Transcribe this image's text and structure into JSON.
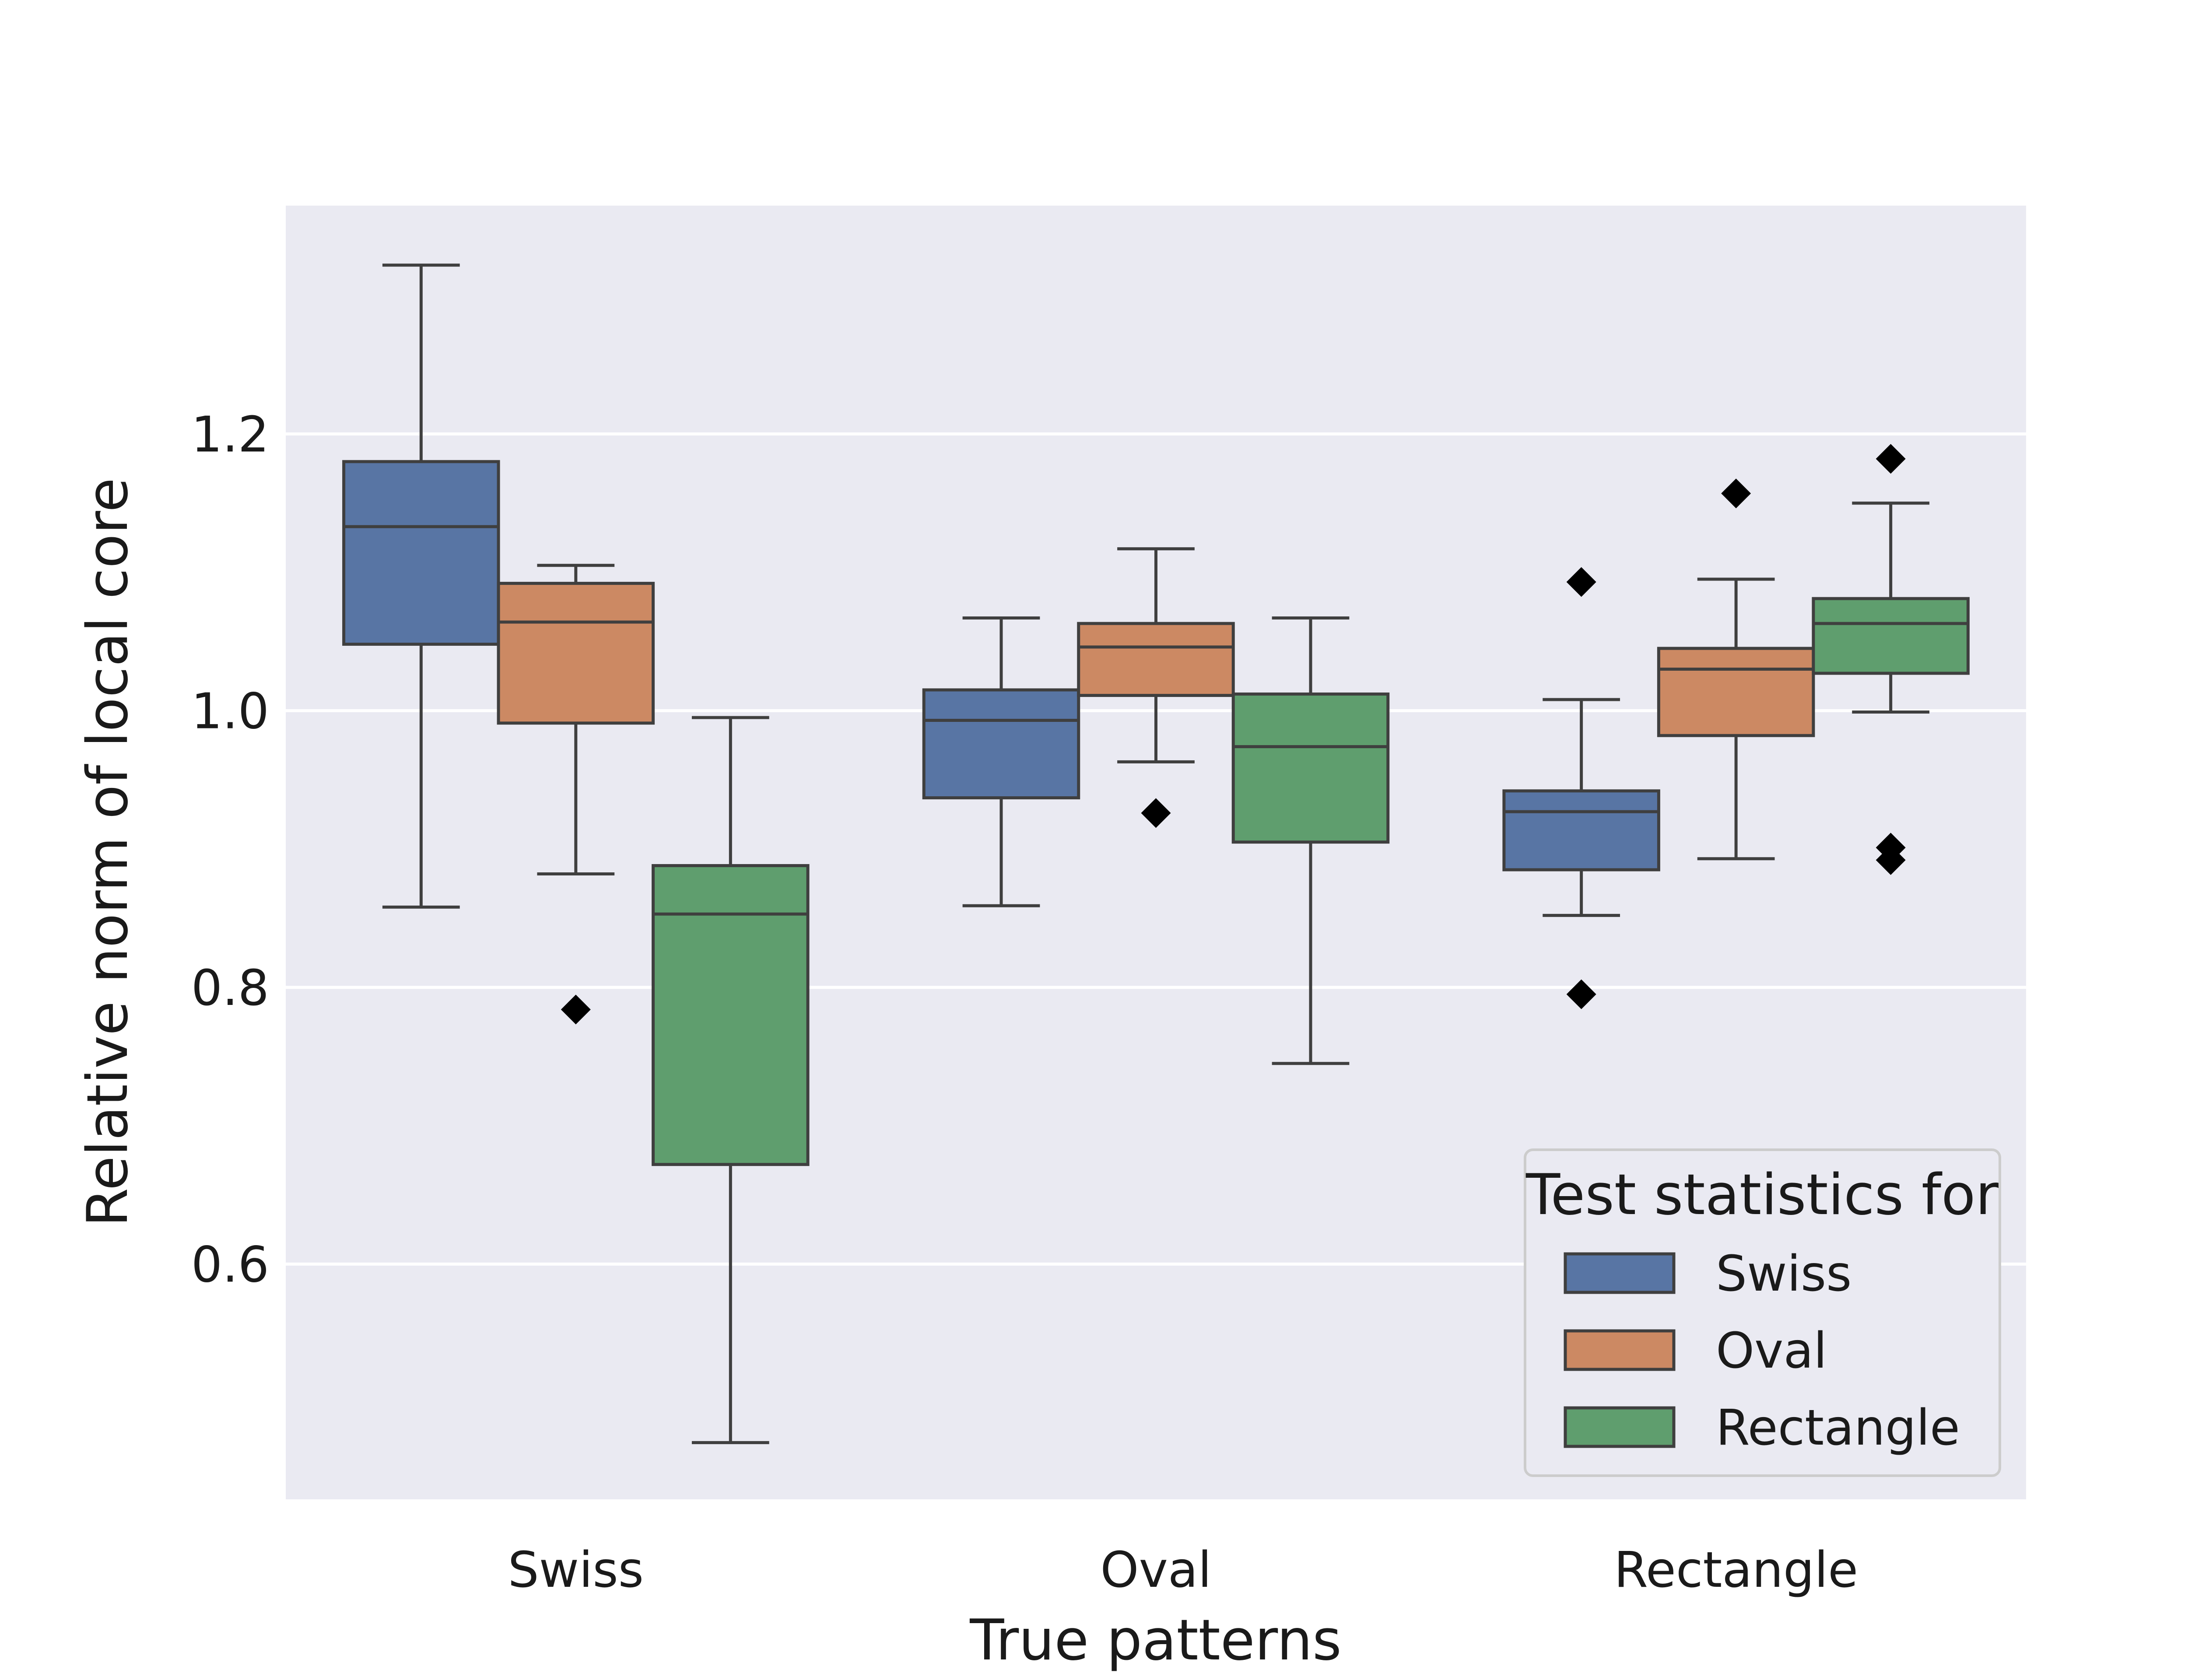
{
  "chart_data": {
    "type": "box",
    "title": "",
    "xlabel": "True patterns",
    "ylabel": "Relative norm of local core",
    "categories": [
      "Swiss",
      "Oval",
      "Rectangle"
    ],
    "ylim": [
      0.43,
      1.365
    ],
    "yticks": [
      0.6,
      0.8,
      1.0,
      1.2
    ],
    "ytick_labels": [
      "0.6",
      "0.8",
      "1.0",
      "1.2"
    ],
    "grid": "horizontal",
    "legend": {
      "title": "Test statistics for",
      "position": "lower right"
    },
    "series": [
      {
        "name": "Swiss",
        "color": "#5875a4",
        "boxes": [
          {
            "whislo": 0.858,
            "q1": 1.048,
            "med": 1.133,
            "q3": 1.18,
            "whishi": 1.322,
            "fliers": []
          },
          {
            "whislo": 0.859,
            "q1": 0.937,
            "med": 0.993,
            "q3": 1.015,
            "whishi": 1.067,
            "fliers": []
          },
          {
            "whislo": 0.852,
            "q1": 0.885,
            "med": 0.927,
            "q3": 0.942,
            "whishi": 1.008,
            "fliers": [
              1.093,
              0.795
            ]
          }
        ]
      },
      {
        "name": "Oval",
        "color": "#cc8963",
        "boxes": [
          {
            "whislo": 0.882,
            "q1": 0.991,
            "med": 1.064,
            "q3": 1.092,
            "whishi": 1.105,
            "fliers": [
              0.784
            ]
          },
          {
            "whislo": 0.963,
            "q1": 1.011,
            "med": 1.046,
            "q3": 1.063,
            "whishi": 1.117,
            "fliers": [
              0.926
            ]
          },
          {
            "whislo": 0.893,
            "q1": 0.982,
            "med": 1.03,
            "q3": 1.045,
            "whishi": 1.095,
            "fliers": [
              1.157
            ]
          }
        ]
      },
      {
        "name": "Rectangle",
        "color": "#5f9e6e",
        "boxes": [
          {
            "whislo": 0.471,
            "q1": 0.672,
            "med": 0.853,
            "q3": 0.888,
            "whishi": 0.995,
            "fliers": []
          },
          {
            "whislo": 0.745,
            "q1": 0.905,
            "med": 0.974,
            "q3": 1.012,
            "whishi": 1.067,
            "fliers": []
          },
          {
            "whislo": 0.999,
            "q1": 1.027,
            "med": 1.063,
            "q3": 1.081,
            "whishi": 1.15,
            "fliers": [
              1.182,
              0.901,
              0.892
            ]
          }
        ]
      }
    ]
  }
}
